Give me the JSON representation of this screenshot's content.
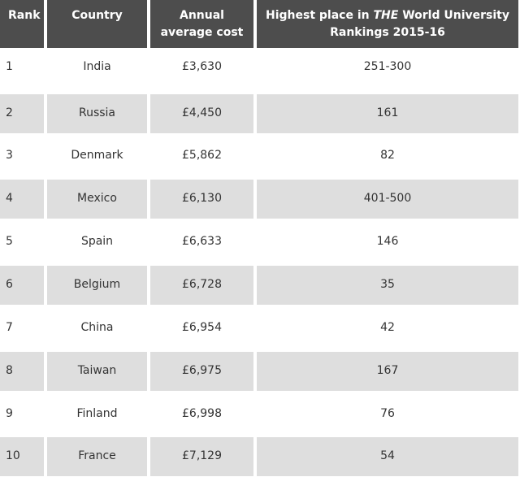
{
  "table": {
    "headers": {
      "rank": "Rank",
      "country": "Country",
      "cost_line1": "Annual",
      "cost_line2": "average cost",
      "ranking_line1_pre": "Highest place in ",
      "ranking_line1_em": "THE",
      "ranking_line1_post": " World University",
      "ranking_line2": "Rankings 2015-16"
    },
    "rows": [
      {
        "rank": "1",
        "country": "India",
        "cost": "£3,630",
        "ranking": "251-300"
      },
      {
        "rank": "2",
        "country": "Russia",
        "cost": "£4,450",
        "ranking": "161"
      },
      {
        "rank": "3",
        "country": "Denmark",
        "cost": "£5,862",
        "ranking": "82"
      },
      {
        "rank": "4",
        "country": "Mexico",
        "cost": "£6,130",
        "ranking": "401-500"
      },
      {
        "rank": "5",
        "country": "Spain",
        "cost": "£6,633",
        "ranking": "146"
      },
      {
        "rank": "6",
        "country": "Belgium",
        "cost": "£6,728",
        "ranking": "35"
      },
      {
        "rank": "7",
        "country": "China",
        "cost": "£6,954",
        "ranking": "42"
      },
      {
        "rank": "8",
        "country": "Taiwan",
        "cost": "£6,975",
        "ranking": "167"
      },
      {
        "rank": "9",
        "country": "Finland",
        "cost": "£6,998",
        "ranking": "76"
      },
      {
        "rank": "10",
        "country": "France",
        "cost": "£7,129",
        "ranking": "54"
      }
    ]
  },
  "colors": {
    "header_bg": "#4d4d4d",
    "header_text": "#ffffff",
    "row_alt_bg": "#dedede",
    "row_bg": "#ffffff",
    "body_text": "#333333"
  }
}
